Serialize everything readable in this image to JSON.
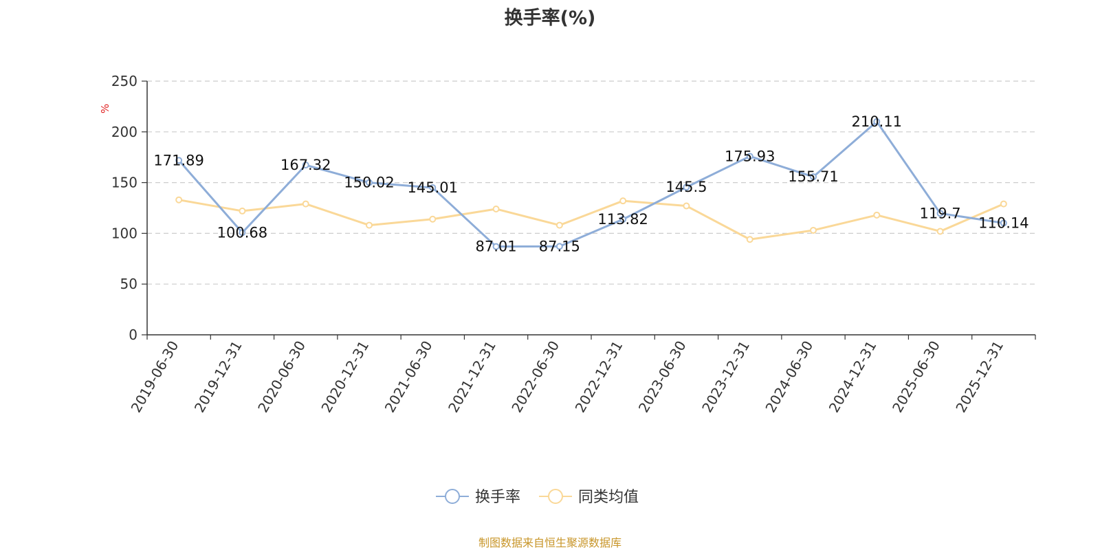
{
  "chart_data": {
    "type": "line",
    "title": "换手率(%)",
    "ylabel": "%",
    "xlabel": "",
    "ylim": [
      0,
      250
    ],
    "yticks": [
      0,
      50,
      100,
      150,
      200,
      250
    ],
    "grid": true,
    "legend_position": "bottom",
    "categories": [
      "2019-06-30",
      "2019-12-31",
      "2020-06-30",
      "2020-12-31",
      "2021-06-30",
      "2021-12-31",
      "2022-06-30",
      "2022-12-31",
      "2023-06-30",
      "2023-12-31",
      "2024-06-30",
      "2024-12-31",
      "2025-06-30",
      "2025-12-31"
    ],
    "series": [
      {
        "name": "换手率",
        "color": "#8eadd8",
        "values": [
          171.89,
          100.68,
          167.32,
          150.02,
          145.01,
          87.01,
          87.15,
          113.82,
          145.5,
          175.93,
          155.71,
          210.11,
          119.7,
          110.14
        ],
        "labels": [
          "171.89",
          "100.68",
          "167.32",
          "150.02",
          "145.01",
          "87.01",
          "87.15",
          "113.82",
          "145.5",
          "175.93",
          "155.71",
          "210.11",
          "119.7",
          "110.14"
        ]
      },
      {
        "name": "同类均值",
        "color": "#fad898",
        "values": [
          133,
          122,
          129,
          108,
          114,
          124,
          108,
          132,
          127,
          94,
          103,
          118,
          102,
          129
        ]
      }
    ]
  },
  "footer": {
    "source": "制图数据来自恒生聚源数据库",
    "color": "#c8962a"
  }
}
